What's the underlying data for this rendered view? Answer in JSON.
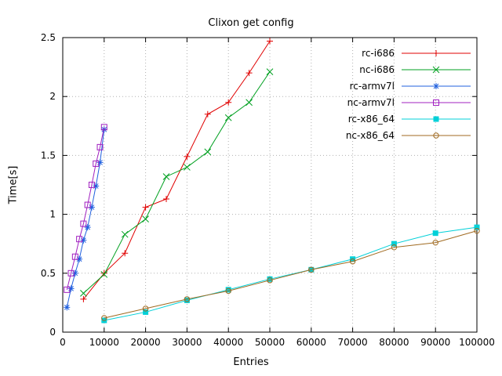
{
  "chart_data": {
    "type": "line",
    "title": "Clixon get config",
    "xlabel": "Entries",
    "ylabel": "Time[s]",
    "xlim": [
      0,
      100000
    ],
    "ylim": [
      0,
      2.5
    ],
    "xticks": [
      0,
      10000,
      20000,
      30000,
      40000,
      50000,
      60000,
      70000,
      80000,
      90000,
      100000
    ],
    "yticks": [
      0,
      0.5,
      1,
      1.5,
      2,
      2.5
    ],
    "grid": true,
    "legend_position": "top-right",
    "colors": {
      "grid": "#b0b0b0",
      "axis": "#000000"
    },
    "series": [
      {
        "name": "rc-i686",
        "color": "#e00000",
        "marker": "plus",
        "x": [
          5000,
          10000,
          15000,
          20000,
          25000,
          30000,
          35000,
          40000,
          45000,
          50000
        ],
        "y": [
          0.28,
          0.5,
          0.67,
          1.06,
          1.13,
          1.49,
          1.85,
          1.95,
          2.2,
          2.47
        ]
      },
      {
        "name": "nc-i686",
        "color": "#00a020",
        "marker": "cross",
        "x": [
          5000,
          10000,
          15000,
          20000,
          25000,
          30000,
          35000,
          40000,
          45000,
          50000
        ],
        "y": [
          0.33,
          0.49,
          0.83,
          0.96,
          1.32,
          1.4,
          1.53,
          1.82,
          1.95,
          2.21
        ]
      },
      {
        "name": "rc-armv7l",
        "color": "#2060df",
        "marker": "asterisk",
        "x": [
          1000,
          2000,
          3000,
          4000,
          5000,
          6000,
          7000,
          8000,
          9000,
          10000
        ],
        "y": [
          0.21,
          0.37,
          0.5,
          0.62,
          0.78,
          0.89,
          1.06,
          1.24,
          1.44,
          1.72
        ]
      },
      {
        "name": "nc-armv7l",
        "color": "#a020c0",
        "marker": "square-open",
        "x": [
          1000,
          2000,
          3000,
          4000,
          5000,
          6000,
          7000,
          8000,
          9000,
          10000
        ],
        "y": [
          0.36,
          0.5,
          0.64,
          0.79,
          0.92,
          1.08,
          1.25,
          1.43,
          1.57,
          1.74
        ]
      },
      {
        "name": "rc-x86_64",
        "color": "#00d0d8",
        "marker": "square-filled",
        "x": [
          10000,
          20000,
          30000,
          40000,
          50000,
          60000,
          70000,
          80000,
          90000,
          100000
        ],
        "y": [
          0.1,
          0.17,
          0.27,
          0.36,
          0.45,
          0.53,
          0.62,
          0.75,
          0.84,
          0.89
        ]
      },
      {
        "name": "nc-x86_64",
        "color": "#a06a20",
        "marker": "circle-open",
        "x": [
          10000,
          20000,
          30000,
          40000,
          50000,
          60000,
          70000,
          80000,
          90000,
          100000
        ],
        "y": [
          0.12,
          0.2,
          0.28,
          0.35,
          0.44,
          0.53,
          0.6,
          0.72,
          0.76,
          0.86
        ]
      }
    ]
  }
}
